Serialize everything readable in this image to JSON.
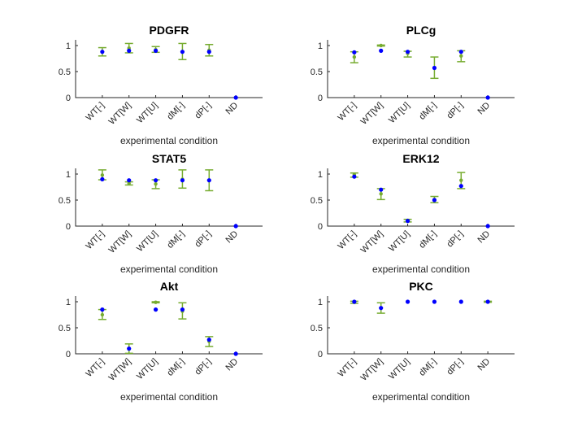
{
  "figure": {
    "colors": {
      "errorbar": "#77AC30",
      "marker": "#0000FF",
      "axis": "#262626"
    }
  },
  "chart_data": [
    {
      "type": "scatter",
      "title": "PDGFR",
      "xlabel": "experimental condition",
      "ylabel": "",
      "categories": [
        "WT[-]",
        "WT[W]",
        "WT[U]",
        "dM[-]",
        "dP[-]",
        "ND"
      ],
      "yticks": [
        "0",
        "0.5",
        "1"
      ],
      "ylim": [
        0,
        1.1
      ],
      "series": [
        {
          "marker_values": [
            0.88,
            0.9,
            0.9,
            0.88,
            0.88,
            0.0
          ]
        },
        {
          "means": [
            0.88,
            0.95,
            0.92,
            0.88,
            0.91,
            null
          ],
          "lower": [
            0.8,
            0.86,
            0.87,
            0.73,
            0.8,
            null
          ],
          "upper": [
            0.96,
            1.04,
            0.98,
            1.04,
            1.02,
            null
          ]
        }
      ]
    },
    {
      "type": "scatter",
      "title": "PLCg",
      "xlabel": "experimental condition",
      "ylabel": "",
      "categories": [
        "WT[-]",
        "WT[W]",
        "WT[U]",
        "dM[-]",
        "dP[-]",
        "ND"
      ],
      "yticks": [
        "0",
        "0.5",
        "1"
      ],
      "ylim": [
        0,
        1.1
      ],
      "series": [
        {
          "marker_values": [
            0.87,
            0.9,
            0.88,
            0.57,
            0.88,
            0.0
          ]
        },
        {
          "means": [
            0.78,
            1.0,
            0.85,
            0.57,
            0.8,
            null
          ],
          "lower": [
            0.67,
            0.99,
            0.78,
            0.37,
            0.69,
            null
          ],
          "upper": [
            0.88,
            1.01,
            0.89,
            0.78,
            0.9,
            null
          ]
        }
      ]
    },
    {
      "type": "scatter",
      "title": "STAT5",
      "xlabel": "experimental condition",
      "ylabel": "",
      "categories": [
        "WT[-]",
        "WT[W]",
        "WT[U]",
        "dM[-]",
        "dP[-]",
        "ND"
      ],
      "yticks": [
        "0",
        "0.5",
        "1"
      ],
      "ylim": [
        0,
        1.1
      ],
      "series": [
        {
          "marker_values": [
            0.9,
            0.88,
            0.88,
            0.88,
            0.88,
            0.0
          ]
        },
        {
          "means": [
            0.98,
            0.82,
            0.81,
            0.9,
            0.88,
            null
          ],
          "lower": [
            0.89,
            0.79,
            0.72,
            0.73,
            0.68,
            null
          ],
          "upper": [
            1.08,
            0.85,
            0.89,
            1.08,
            1.08,
            null
          ]
        }
      ]
    },
    {
      "type": "scatter",
      "title": "ERK12",
      "xlabel": "experimental condition",
      "ylabel": "",
      "categories": [
        "WT[-]",
        "WT[W]",
        "WT[U]",
        "dM[-]",
        "dP[-]",
        "ND"
      ],
      "yticks": [
        "0",
        "0.5",
        "1"
      ],
      "ylim": [
        0,
        1.1
      ],
      "series": [
        {
          "marker_values": [
            0.95,
            0.7,
            0.1,
            0.5,
            0.77,
            0.0
          ]
        },
        {
          "means": [
            0.99,
            0.62,
            0.11,
            0.51,
            0.88,
            null
          ],
          "lower": [
            0.94,
            0.51,
            0.08,
            0.45,
            0.72,
            null
          ],
          "upper": [
            1.02,
            0.72,
            0.13,
            0.57,
            1.03,
            null
          ]
        }
      ]
    },
    {
      "type": "scatter",
      "title": "Akt",
      "xlabel": "experimental condition",
      "ylabel": "",
      "categories": [
        "WT[-]",
        "WT[W]",
        "WT[U]",
        "dM[-]",
        "dP[-]",
        "ND"
      ],
      "yticks": [
        "0",
        "0.5",
        "1"
      ],
      "ylim": [
        0,
        1.1
      ],
      "series": [
        {
          "marker_values": [
            0.85,
            0.1,
            0.85,
            0.85,
            0.27,
            0.0
          ]
        },
        {
          "means": [
            0.75,
            0.09,
            0.99,
            0.82,
            0.24,
            null
          ],
          "lower": [
            0.66,
            0.01,
            0.98,
            0.67,
            0.14,
            null
          ],
          "upper": [
            0.85,
            0.19,
            1.0,
            0.98,
            0.33,
            null
          ]
        }
      ]
    },
    {
      "type": "scatter",
      "title": "PKC",
      "xlabel": "experimental condition",
      "ylabel": "",
      "categories": [
        "WT[-]",
        "WT[W]",
        "WT[U]",
        "dM[-]",
        "dP[-]",
        "ND"
      ],
      "yticks": [
        "0",
        "0.5",
        "1"
      ],
      "ylim": [
        0,
        1.1
      ],
      "series": [
        {
          "marker_values": [
            1.0,
            0.88,
            1.0,
            1.0,
            1.0,
            1.0
          ]
        },
        {
          "means": [
            0.99,
            0.88,
            null,
            null,
            null,
            1.0
          ],
          "lower": [
            0.97,
            0.78,
            null,
            null,
            null,
            0.99
          ],
          "upper": [
            1.01,
            0.98,
            null,
            null,
            null,
            1.01
          ]
        }
      ]
    }
  ]
}
